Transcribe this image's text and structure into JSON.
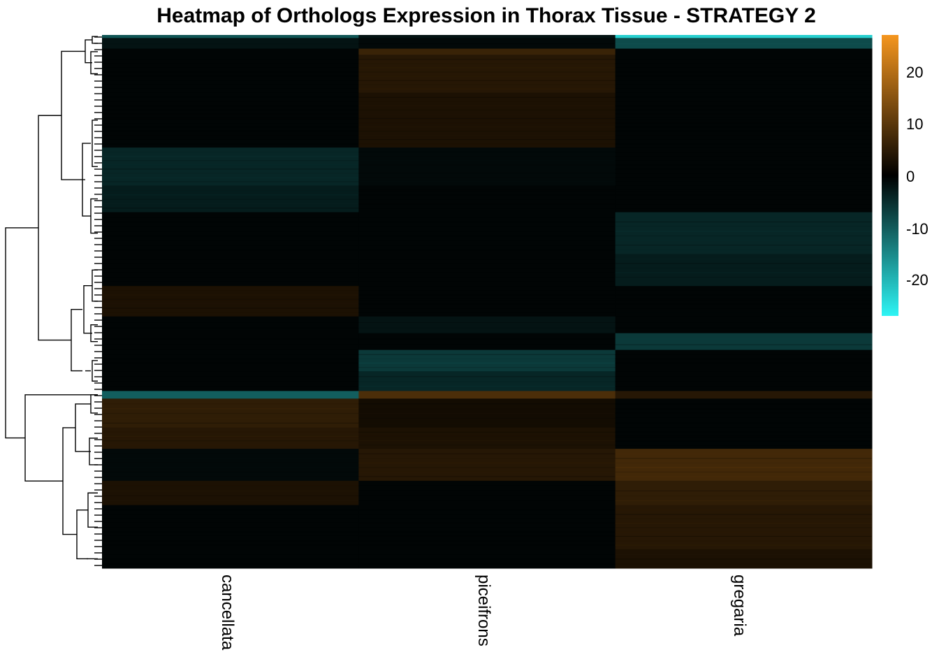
{
  "chart_data": {
    "type": "heatmap",
    "title": "Heatmap of Orthologs Expression in Thorax Tissue - STRATEGY 2",
    "columns": [
      "cancellata",
      "piceifrons",
      "gregaria"
    ],
    "color_scale": {
      "min": -26,
      "max": 26,
      "low_color": "#2ef5f5",
      "mid_color": "#000000",
      "high_color": "#f5961e",
      "ticks": [
        "20",
        "10",
        "0",
        "-10",
        "-20"
      ],
      "tick_values": [
        20,
        10,
        0,
        -10,
        -20
      ]
    },
    "row_dendrogram": true,
    "row_blocks": [
      {
        "cluster": "top-cyan-band",
        "values": [
          -9,
          -2,
          -22
        ]
      },
      {
        "cluster": "top-dark",
        "values": [
          -2,
          -1,
          -8
        ]
      },
      {
        "cluster": "pice-up-1",
        "values": [
          -0.5,
          6,
          -0.5
        ]
      },
      {
        "cluster": "pice-up-2",
        "values": [
          -0.5,
          4,
          -0.5
        ]
      },
      {
        "cluster": "pice-up-3",
        "values": [
          -0.5,
          3,
          -0.5
        ]
      },
      {
        "cluster": "canc-down-1",
        "values": [
          -4,
          -1,
          -0.5
        ]
      },
      {
        "cluster": "canc-down-2",
        "values": [
          -3,
          -0.5,
          -0.5
        ]
      },
      {
        "cluster": "gregaria-down-1",
        "values": [
          -0.5,
          -0.5,
          -4
        ]
      },
      {
        "cluster": "gregaria-down-2",
        "values": [
          -0.5,
          -0.5,
          -3
        ]
      },
      {
        "cluster": "canc-up-1",
        "values": [
          3,
          -0.5,
          -0.5
        ]
      },
      {
        "cluster": "pice-slight-down",
        "values": [
          -0.5,
          -2,
          -0.5
        ]
      },
      {
        "cluster": "greg-down-band",
        "values": [
          -0.5,
          -0.5,
          -6
        ]
      },
      {
        "cluster": "pice-down-1",
        "values": [
          -0.5,
          -6,
          -0.5
        ]
      },
      {
        "cluster": "pice-down-2",
        "values": [
          -0.5,
          -4,
          -0.5
        ]
      },
      {
        "cluster": "canc-cyan-band",
        "values": [
          -10,
          8,
          4
        ]
      },
      {
        "cluster": "canc-up-2",
        "values": [
          5,
          2,
          -0.5
        ]
      },
      {
        "cluster": "canc-up-3",
        "values": [
          4,
          3,
          -0.5
        ]
      },
      {
        "cluster": "greg-up-1",
        "values": [
          -1,
          4,
          7
        ]
      },
      {
        "cluster": "greg-up-2",
        "values": [
          3,
          -0.5,
          5
        ]
      },
      {
        "cluster": "greg-up-3",
        "values": [
          -0.5,
          -0.5,
          4
        ]
      },
      {
        "cluster": "greg-up-4",
        "values": [
          -0.5,
          -0.5,
          3
        ]
      }
    ]
  }
}
